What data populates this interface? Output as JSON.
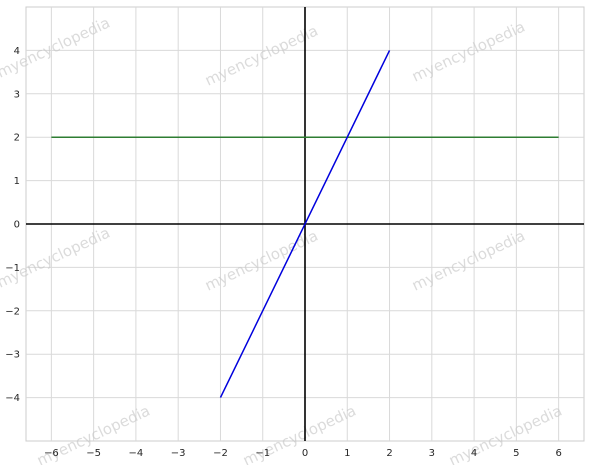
{
  "chart_data": {
    "type": "line",
    "title": "",
    "xlabel": "",
    "ylabel": "",
    "xlim": [
      -6.6,
      6.6
    ],
    "ylim": [
      -5.0,
      5.0
    ],
    "xticks": [
      -6,
      -5,
      -4,
      -3,
      -2,
      -1,
      0,
      1,
      2,
      3,
      4,
      5,
      6
    ],
    "yticks": [
      -4,
      -3,
      -2,
      -1,
      0,
      1,
      2,
      3,
      4
    ],
    "xtick_labels": [
      "−6",
      "−5",
      "−4",
      "−3",
      "−2",
      "−1",
      "0",
      "1",
      "2",
      "3",
      "4",
      "5",
      "6"
    ],
    "ytick_labels": [
      "−4",
      "−3",
      "−2",
      "−1",
      "0",
      "1",
      "2",
      "3",
      "4"
    ],
    "grid": true,
    "axis_lines": {
      "x_axis_at_y": 0,
      "y_axis_at_x": 0,
      "color": "#000000"
    },
    "series": [
      {
        "x": [
          -6,
          6
        ],
        "y": [
          2,
          2
        ],
        "color": "#2e7d32"
      },
      {
        "x": [
          -2,
          2
        ],
        "y": [
          -4,
          4
        ],
        "color": "#0000dd"
      }
    ],
    "watermark": "myencyclopedia"
  }
}
